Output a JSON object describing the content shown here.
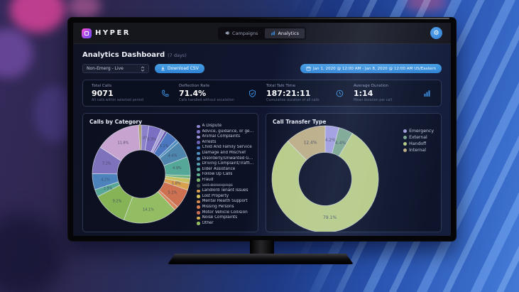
{
  "window": {
    "brand": "HYPER"
  },
  "nav": {
    "items": [
      {
        "label": "Campaigns",
        "icon": "megaphone-icon",
        "active": false
      },
      {
        "label": "Analytics",
        "icon": "bar-chart-icon",
        "active": true
      }
    ]
  },
  "topbar": {
    "settings_icon": "gear-icon",
    "settings_glyph": "⚙"
  },
  "header": {
    "title": "Analytics Dashboard",
    "subtitle": "(7 days)"
  },
  "controls": {
    "filter_value": "Non-Emerg - Live",
    "download_label": "Download CSV",
    "download_icon": "download-icon",
    "date_range": "Jan 1, 2020 @ 12:00 AM - Jan 8, 2020 @ 12:00 AM US/Eastern",
    "date_icon": "calendar-icon"
  },
  "accent_color": "#3488d8",
  "stats": [
    {
      "label": "Total Calls",
      "value": "9071",
      "sublabel": "All calls within selected period",
      "icon": "phone-icon"
    },
    {
      "label": "Deflection Rate",
      "value": "71.4%",
      "sublabel": "Calls handled without escalation",
      "icon": "shield-check-icon"
    },
    {
      "label": "Total Talk Time",
      "value": "187:21:11",
      "sublabel": "Cumulative duration of all calls",
      "icon": "clock-icon"
    },
    {
      "label": "Average Duration",
      "value": "1:14",
      "sublabel": "Mean duration per call",
      "icon": "bar-chart-icon"
    }
  ],
  "chart_data": [
    {
      "type": "donut",
      "title": "Calls by Category",
      "legend_position": "right",
      "segment_names_legible": false,
      "disabled_legend_items": [
        "Get Belongings"
      ],
      "legend": [
        {
          "name": "A Dispute",
          "color": "#8f86d0"
        },
        {
          "name": "Advice, guidance, or gene...",
          "color": "#7a6fc2"
        },
        {
          "name": "Animal Complaints",
          "color": "#9d93d4"
        },
        {
          "name": "Arrests",
          "color": "#6a60b4"
        },
        {
          "name": "Child And Family Service",
          "color": "#4a77c0"
        },
        {
          "name": "Damage and Mischief",
          "color": "#4e8fc0"
        },
        {
          "name": "Disorderly/Unwanted Guest",
          "color": "#5388b3"
        },
        {
          "name": "Driving Complaint/Traffic ...",
          "color": "#55a0b0"
        },
        {
          "name": "Elder Assistance",
          "color": "#57a897"
        },
        {
          "name": "Follow Up Calls",
          "color": "#5fae8e"
        },
        {
          "name": "Fraud",
          "color": "#79b46a"
        },
        {
          "name": "Get Belongings",
          "color": "#8a9a7a",
          "disabled": true
        },
        {
          "name": "Landlord Tenant Issues",
          "color": "#d9a14e"
        },
        {
          "name": "Lost Property",
          "color": "#d4c05a"
        },
        {
          "name": "Mental Health Support",
          "color": "#d8894e"
        },
        {
          "name": "Missing Persons",
          "color": "#d87b50"
        },
        {
          "name": "Motor Vehicle Collision",
          "color": "#cd6b52"
        },
        {
          "name": "Noise Complaints",
          "color": "#d4b152"
        },
        {
          "name": "Other",
          "color": "#93bd62"
        }
      ],
      "segments": [
        {
          "value": 2.0,
          "color": "#8b81cb",
          "label": "2.0%"
        },
        {
          "value": 3.3,
          "color": "#7a6fc2",
          "label": "3.3%"
        },
        {
          "value": 1.0,
          "color": "#a89fd8"
        },
        {
          "value": 0.7,
          "color": "#675cb0"
        },
        {
          "value": 3.1,
          "color": "#4a77c0",
          "label": "3.1%"
        },
        {
          "value": 0.8,
          "color": "#4e8fc0"
        },
        {
          "value": 4.4,
          "color": "#4e86ae",
          "label": "4.4%"
        },
        {
          "value": 4.9,
          "color": "#55a897",
          "label": "4.9%"
        },
        {
          "value": 0.8,
          "color": "#6fb27a"
        },
        {
          "value": 1.2,
          "color": "#c6c05e"
        },
        {
          "value": 1.8,
          "color": "#d9a14e",
          "label": "1.8%"
        },
        {
          "value": 5.1,
          "color": "#cd7150",
          "label": "5.1%"
        },
        {
          "value": 1.0,
          "color": "#d8875a"
        },
        {
          "value": 14.1,
          "color": "#93bd62",
          "label": "14.1%"
        },
        {
          "value": 9.2,
          "color": "#85b356",
          "label": "9.2%"
        },
        {
          "value": 1.9,
          "color": "#58a796",
          "label": "1.9%"
        },
        {
          "value": 4.2,
          "color": "#4c83bd",
          "label": "4.2%"
        },
        {
          "value": 7.2,
          "color": "#7e72bd",
          "label": "7.2%"
        },
        {
          "value": 11.8,
          "color": "#c7a3d0",
          "label": "11.8%"
        },
        {
          "value": 0.7,
          "color": "#a99a66"
        }
      ]
    },
    {
      "type": "donut",
      "title": "Call Transfer Type",
      "legend_position": "right",
      "legend": [
        {
          "name": "Emergency",
          "color": "#a6a0e0"
        },
        {
          "name": "External",
          "color": "#7fa98e"
        },
        {
          "name": "Handoff",
          "color": "#bdd085"
        },
        {
          "name": "Internal",
          "color": "#c2b184"
        }
      ],
      "segments": [
        {
          "name": "Emergency",
          "value": 4.2,
          "color": "#a6a0e0",
          "label": "4.2%"
        },
        {
          "name": "External",
          "value": 4.4,
          "color": "#7fa98e",
          "label": "4.4%"
        },
        {
          "name": "Handoff",
          "value": 79.1,
          "color": "#bdd085",
          "label": "79.1%"
        },
        {
          "name": "Internal",
          "value": 12.4,
          "color": "#c2b184",
          "label": "12.4%"
        }
      ]
    }
  ]
}
